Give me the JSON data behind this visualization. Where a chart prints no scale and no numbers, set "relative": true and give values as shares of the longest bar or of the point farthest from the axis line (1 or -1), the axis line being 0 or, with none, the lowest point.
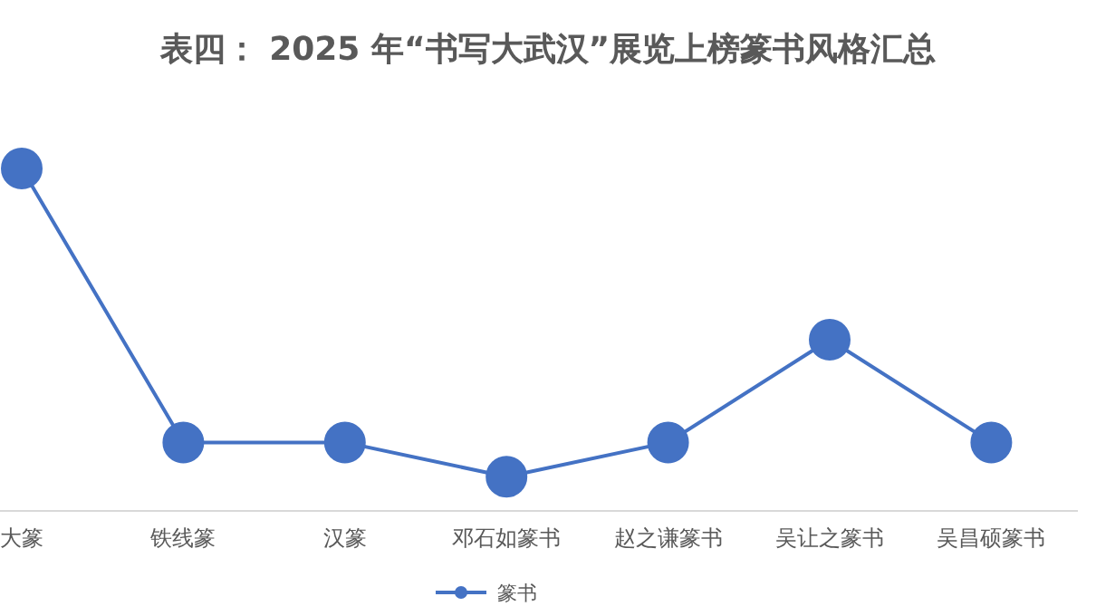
{
  "chart_data": {
    "type": "line",
    "title": "表四： 2025 年“书写大武汉”展览上榜篆书风格汇总",
    "categories": [
      "大篆",
      "铁线篆",
      "汉篆",
      "邓石如篆书",
      "赵之谦篆书",
      "吴让之篆书",
      "吴昌硕篆书"
    ],
    "relative": true,
    "marker": "circle",
    "legend": "bottom",
    "series": [
      {
        "name": "篆书",
        "color": "#4472c4",
        "values": [
          1,
          0.2,
          0.2,
          0.1,
          0.2,
          0.5,
          0.2
        ]
      }
    ]
  }
}
